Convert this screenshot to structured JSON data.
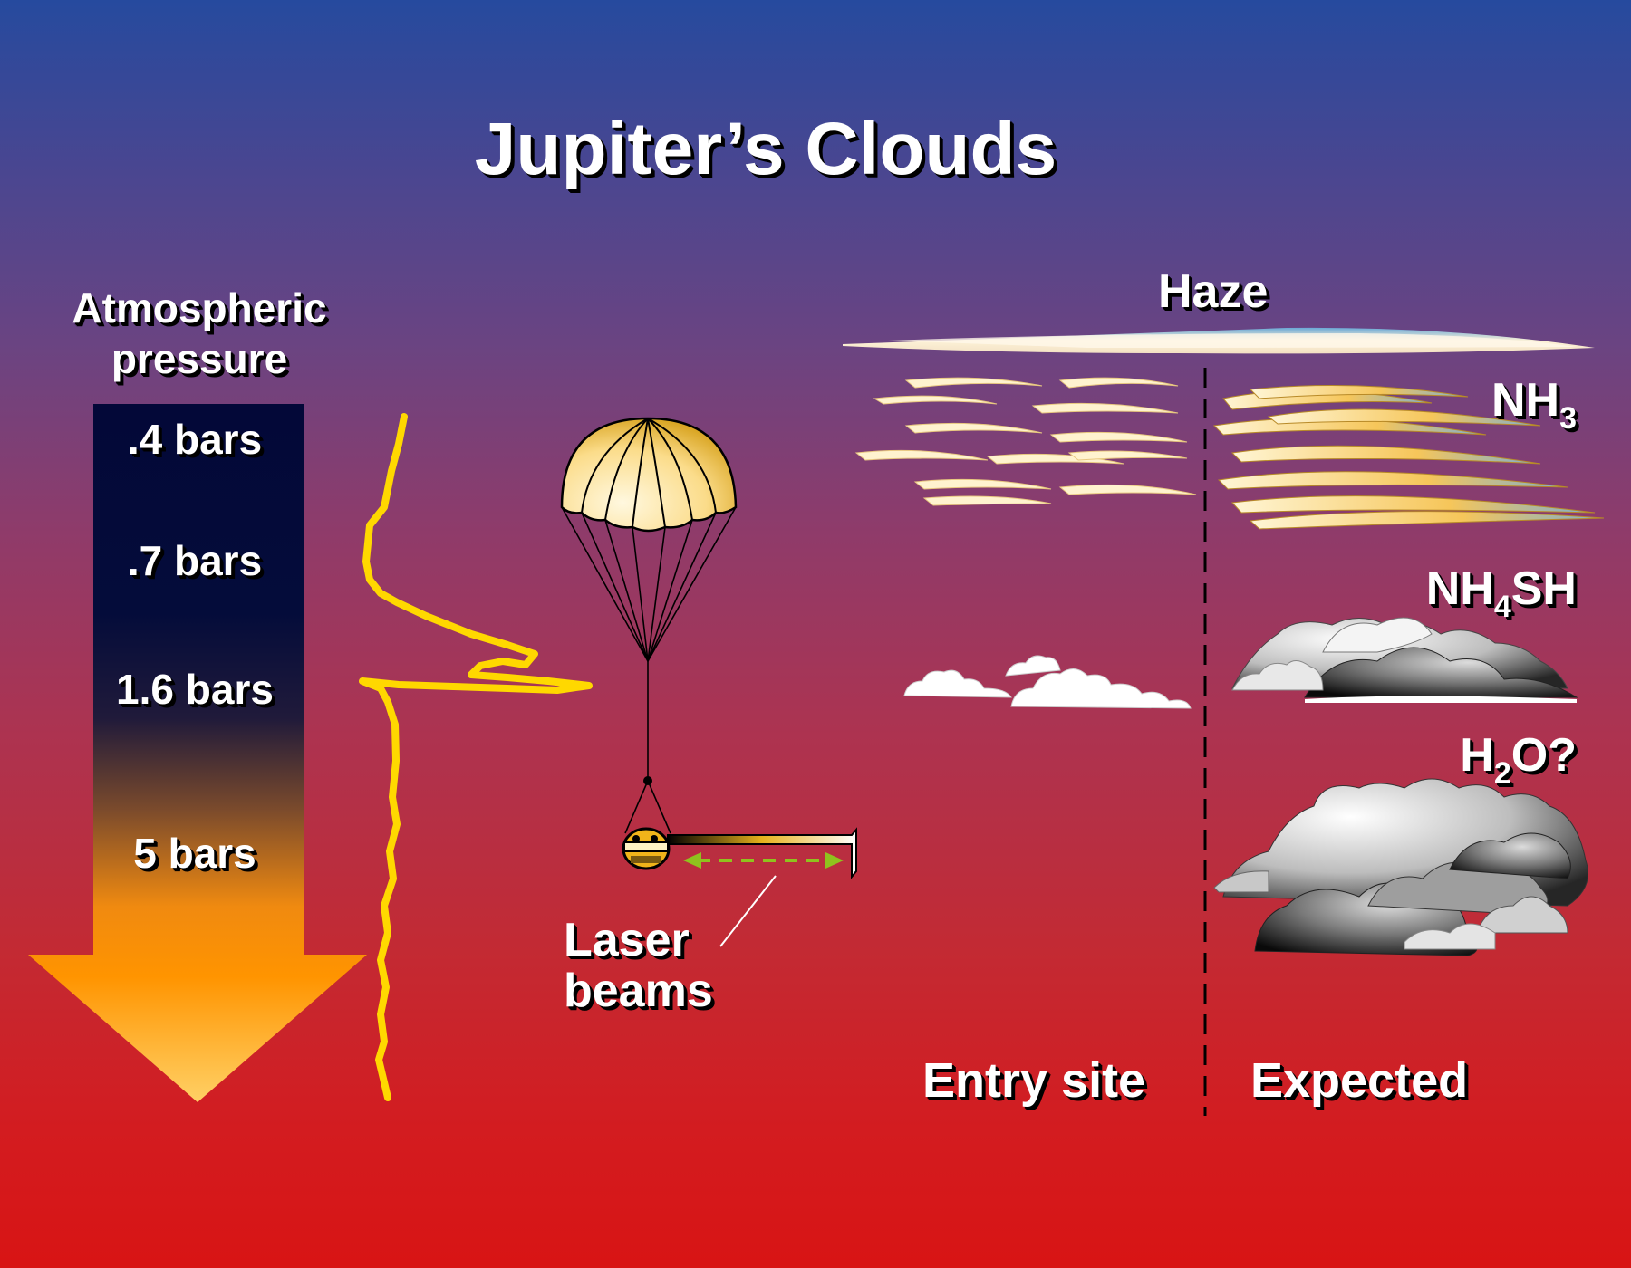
{
  "title": "Jupiter’s Clouds",
  "pressure": {
    "heading_line1": "Atmospheric",
    "heading_line2": "pressure",
    "levels": [
      ".4 bars",
      ".7 bars",
      "1.6 bars",
      "5 bars"
    ]
  },
  "haze_label": "Haze",
  "layers": [
    {
      "main": "NH",
      "sub": "3",
      "tail": ""
    },
    {
      "main": "NH",
      "sub": "4",
      "tail": "SH"
    },
    {
      "main": "H",
      "sub": "2",
      "tail": "O?"
    }
  ],
  "laser": {
    "line1": "Laser",
    "line2": "beams"
  },
  "columns": {
    "entry": "Entry site",
    "expected": "Expected"
  },
  "colors": {
    "sky_top": "#264a9e",
    "sky_bottom": "#d81414",
    "profile_line": "#ffd800",
    "laser_arrow": "#8fc21e",
    "arrow_top": "#030838",
    "arrow_bottom": "#ffd065"
  }
}
